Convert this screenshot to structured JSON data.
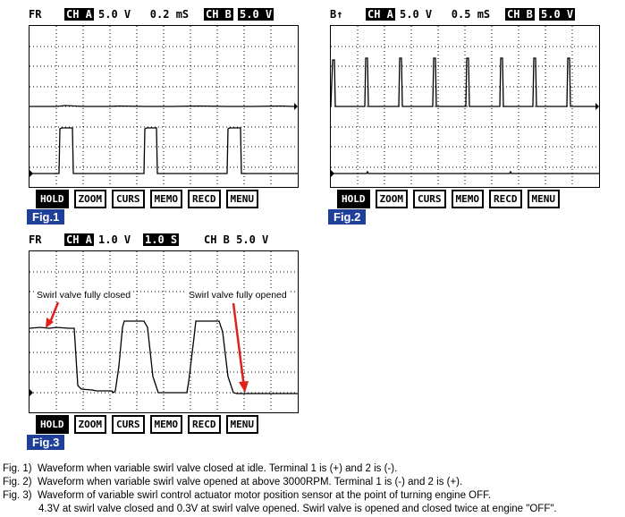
{
  "buttons": [
    "HOLD",
    "ZOOM",
    "CURS",
    "MEMO",
    "RECD",
    "MENU"
  ],
  "fig1": {
    "label": "Fig.1",
    "tag": "FR",
    "ch_a": "CH A",
    "ch_a_settings": "5.0 V   0.2 mS",
    "ch_b": "CH B",
    "ch_b_setting": "5.0 V"
  },
  "fig2": {
    "label": "Fig.2",
    "tag": "B↑",
    "ch_a": "CH A",
    "ch_a_settings": "5.0 V   0.5 mS",
    "ch_b": "CH B",
    "ch_b_setting": "5.0 V"
  },
  "fig3": {
    "label": "Fig.3",
    "tag": "FR",
    "ch_a": "CH A",
    "ch_a_setting": "1.0 V",
    "time_setting": "1.0 S",
    "ch_b": "CH B 5.0 V",
    "annotation_closed": "Swirl valve fully closed",
    "annotation_opened": "Swirl valve fully opened"
  },
  "captions": [
    "Fig. 1)  Waveform when variable swirl valve closed at idle. Terminal 1 is (+) and 2 is (-).",
    "Fig. 2)  Waveform when variable swirl valve opened at above 3000RPM. Terminal 1 is (-) and 2 is (+).",
    "Fig. 3)  Waveform of variable swirl control actuator motor position sensor at the point of turning engine OFF.",
    "4.3V at swirl valve closed and 0.3V at swirl valve opened. Swirl valve is opened and closed twice at engine \"OFF\"."
  ],
  "colors": {
    "figure_label_bg": "#1f3f99",
    "arrow": "#e0201a"
  }
}
